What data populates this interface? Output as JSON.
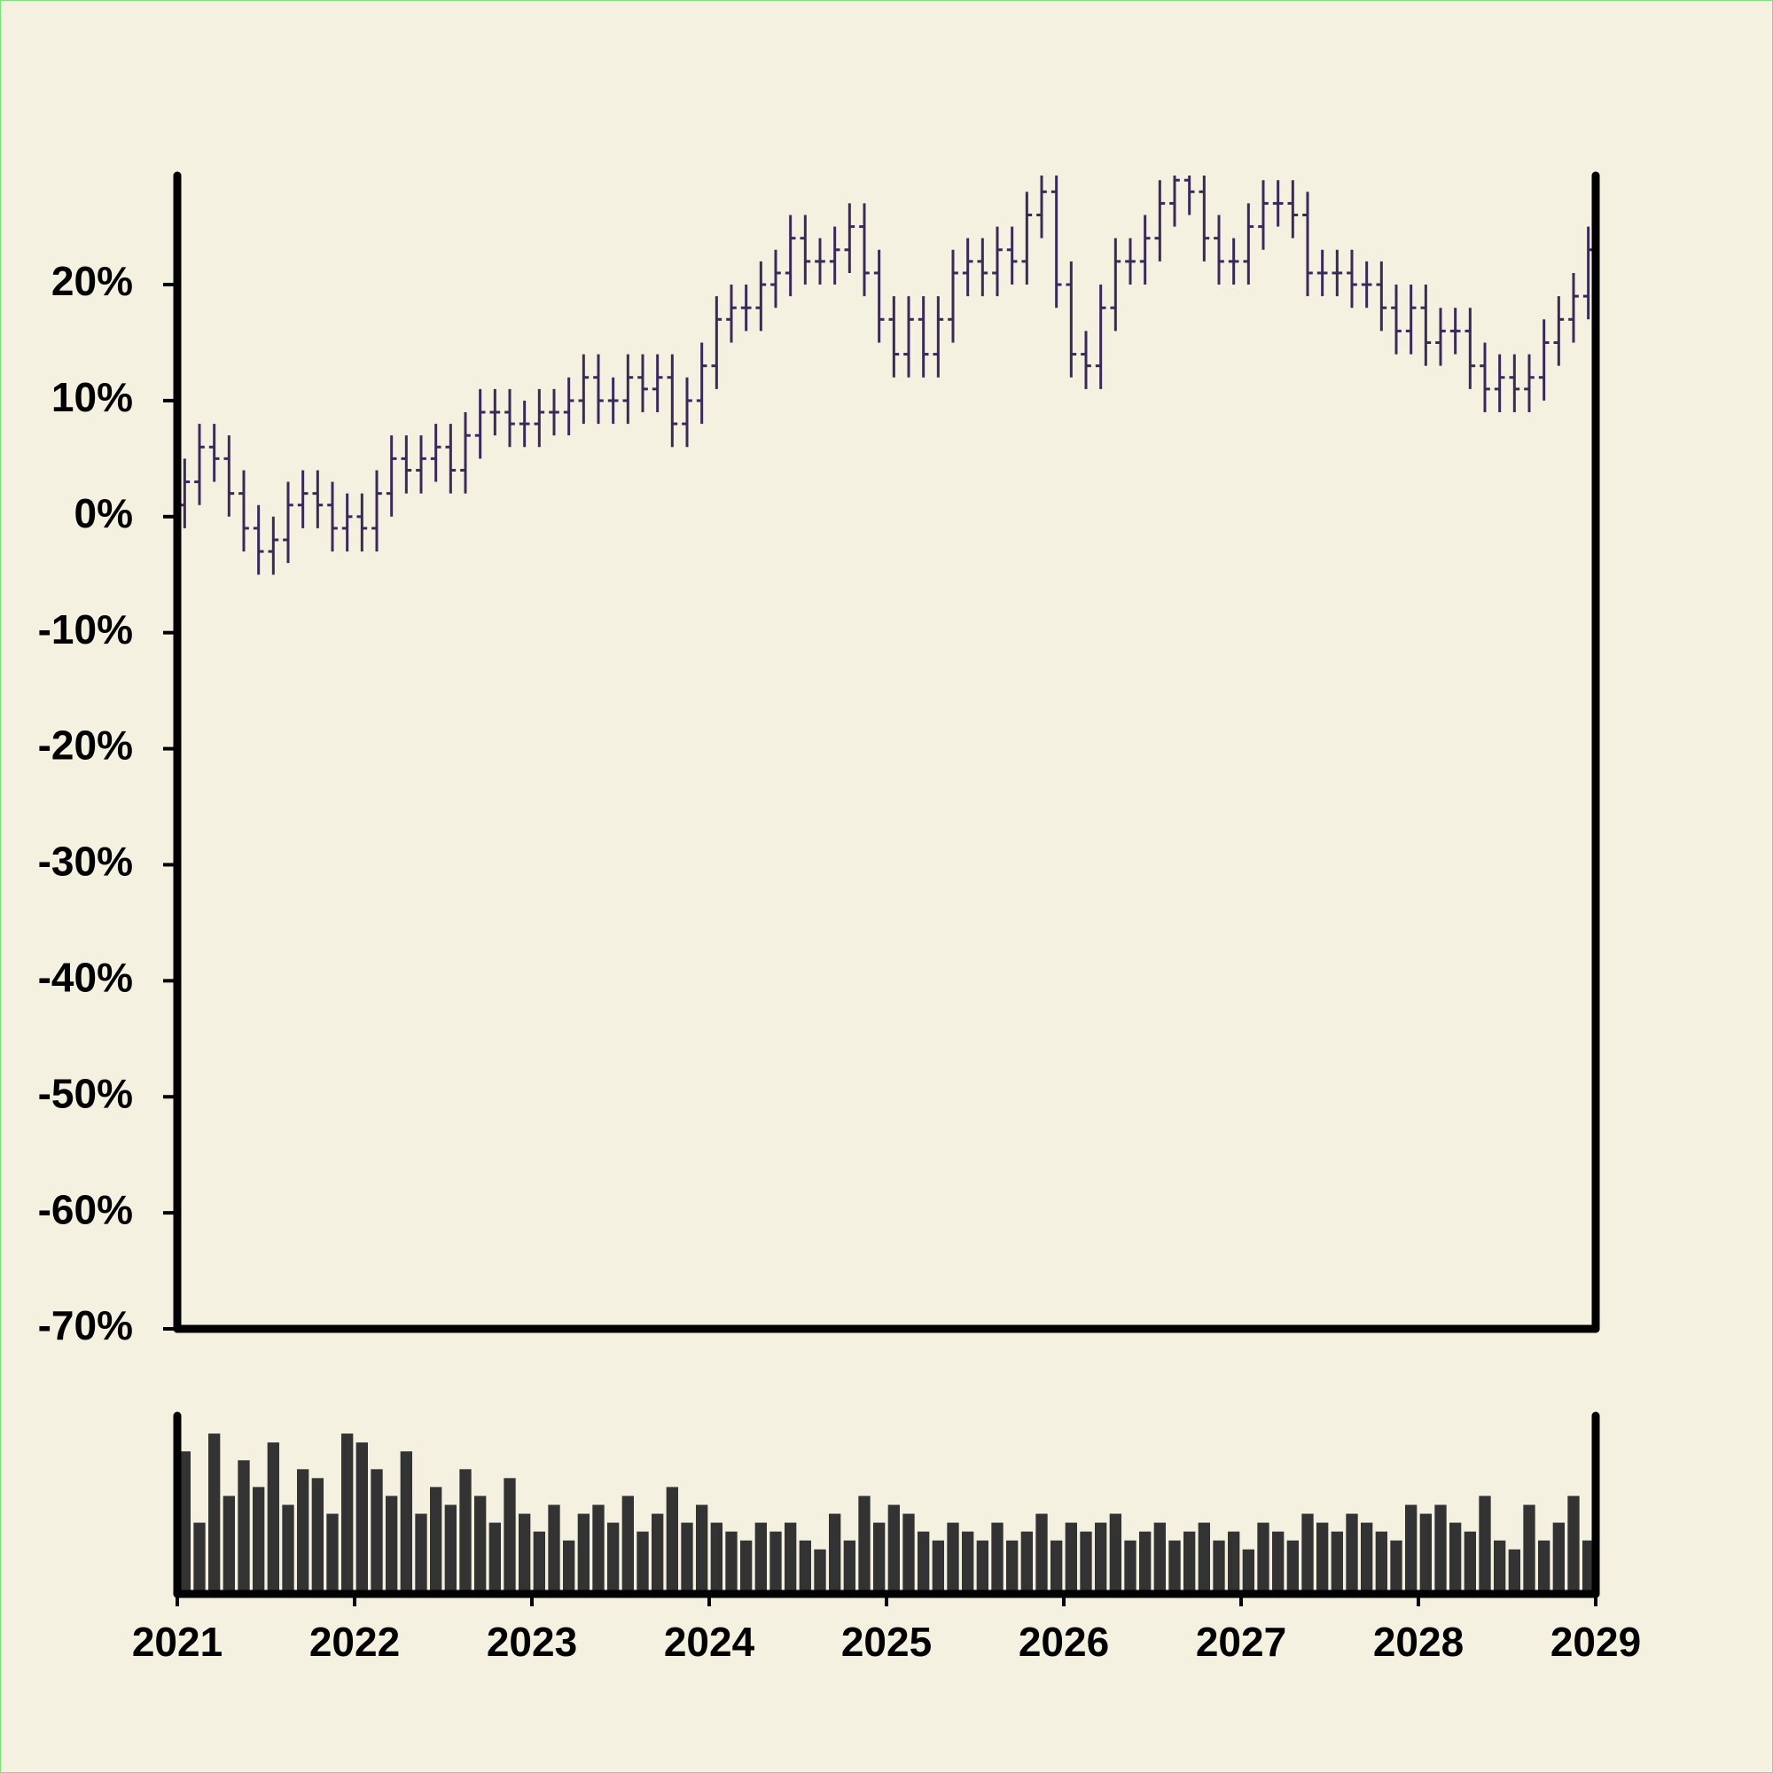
{
  "chart_data": {
    "type": "ohlc",
    "x": [
      "2021-01",
      "2021-02",
      "2021-03",
      "2021-04",
      "2021-05",
      "2021-06",
      "2021-07",
      "2021-08",
      "2021-09",
      "2021-10",
      "2021-11",
      "2021-12",
      "2022-01",
      "2022-02",
      "2022-03",
      "2022-04",
      "2022-05",
      "2022-06",
      "2022-07",
      "2022-08",
      "2022-09",
      "2022-10",
      "2022-11",
      "2022-12",
      "2023-01",
      "2023-02",
      "2023-03",
      "2023-04",
      "2023-05",
      "2023-06",
      "2023-07",
      "2023-08",
      "2023-09",
      "2023-10",
      "2023-11",
      "2023-12",
      "2024-01",
      "2024-02",
      "2024-03",
      "2024-04",
      "2024-05",
      "2024-06",
      "2024-07",
      "2024-08",
      "2024-09",
      "2024-10",
      "2024-11",
      "2024-12",
      "2025-01",
      "2025-02",
      "2025-03",
      "2025-04",
      "2025-05",
      "2025-06",
      "2025-07",
      "2025-08",
      "2025-09",
      "2025-10",
      "2025-11",
      "2025-12",
      "2026-01",
      "2026-02",
      "2026-03",
      "2026-04",
      "2026-05",
      "2026-06",
      "2026-07",
      "2026-08",
      "2026-09",
      "2026-10",
      "2026-11",
      "2026-12",
      "2027-01",
      "2027-02",
      "2027-03",
      "2027-04",
      "2027-05",
      "2027-06",
      "2027-07",
      "2027-08",
      "2027-09",
      "2027-10",
      "2027-11",
      "2027-12",
      "2028-01",
      "2028-02",
      "2028-03",
      "2028-04",
      "2028-05",
      "2028-06",
      "2028-07",
      "2028-08",
      "2028-09",
      "2028-10",
      "2028-11",
      "2028-12"
    ],
    "open": [
      1,
      3,
      6,
      5,
      2,
      -1,
      -3,
      -2,
      1,
      2,
      1,
      -1,
      0,
      -1,
      2,
      5,
      4,
      5,
      6,
      4,
      7,
      9,
      9,
      8,
      8,
      9,
      9,
      10,
      12,
      10,
      10,
      12,
      11,
      12,
      8,
      10,
      13,
      17,
      18,
      18,
      20,
      21,
      24,
      22,
      22,
      23,
      25,
      21,
      17,
      14,
      17,
      14,
      17,
      21,
      22,
      21,
      23,
      22,
      26,
      28,
      20,
      14,
      13,
      18,
      22,
      22,
      24,
      27,
      29,
      28,
      24,
      22,
      22,
      25,
      27,
      27,
      26,
      21,
      21,
      21,
      20,
      20,
      18,
      16,
      18,
      15,
      16,
      16,
      13,
      11,
      12,
      11,
      12,
      15,
      17,
      19
    ],
    "high": [
      5,
      8,
      8,
      7,
      4,
      1,
      0,
      3,
      4,
      4,
      3,
      2,
      2,
      4,
      7,
      7,
      7,
      8,
      8,
      9,
      11,
      11,
      11,
      10,
      11,
      11,
      12,
      14,
      14,
      12,
      14,
      14,
      14,
      14,
      12,
      15,
      19,
      20,
      20,
      22,
      23,
      26,
      26,
      24,
      25,
      27,
      27,
      23,
      19,
      19,
      19,
      19,
      23,
      24,
      24,
      25,
      25,
      28,
      30,
      30,
      22,
      16,
      20,
      24,
      24,
      26,
      29,
      31,
      31,
      30,
      26,
      24,
      27,
      29,
      29,
      29,
      28,
      23,
      23,
      23,
      22,
      22,
      20,
      20,
      20,
      18,
      18,
      18,
      15,
      14,
      14,
      14,
      17,
      19,
      21,
      25
    ],
    "low": [
      -1,
      1,
      3,
      0,
      -3,
      -5,
      -5,
      -4,
      -1,
      -1,
      -3,
      -3,
      -3,
      -3,
      0,
      2,
      2,
      3,
      2,
      2,
      5,
      7,
      6,
      6,
      6,
      7,
      7,
      8,
      8,
      8,
      8,
      9,
      9,
      6,
      6,
      8,
      11,
      15,
      16,
      16,
      18,
      19,
      20,
      20,
      20,
      21,
      19,
      15,
      12,
      12,
      12,
      12,
      15,
      19,
      19,
      19,
      20,
      20,
      24,
      18,
      12,
      11,
      11,
      16,
      20,
      20,
      22,
      25,
      26,
      22,
      20,
      20,
      20,
      23,
      25,
      24,
      19,
      19,
      19,
      18,
      18,
      16,
      14,
      14,
      13,
      13,
      14,
      11,
      9,
      9,
      9,
      9,
      10,
      13,
      15,
      17
    ],
    "close": [
      3,
      6,
      5,
      2,
      -1,
      -3,
      -2,
      1,
      2,
      1,
      -1,
      0,
      -1,
      2,
      5,
      4,
      5,
      6,
      4,
      7,
      9,
      9,
      8,
      8,
      9,
      9,
      10,
      12,
      10,
      10,
      12,
      11,
      12,
      8,
      10,
      13,
      17,
      18,
      18,
      20,
      21,
      24,
      22,
      22,
      23,
      25,
      21,
      17,
      14,
      17,
      14,
      17,
      21,
      22,
      21,
      23,
      22,
      26,
      28,
      20,
      14,
      13,
      18,
      22,
      22,
      24,
      27,
      29,
      28,
      24,
      22,
      22,
      25,
      27,
      27,
      26,
      21,
      21,
      21,
      20,
      20,
      18,
      16,
      18,
      15,
      16,
      16,
      13,
      11,
      12,
      11,
      12,
      15,
      17,
      19,
      23
    ],
    "color": "#3a2a5a",
    "ylim": [
      -70,
      29.4
    ],
    "yticks": [
      {
        "value": -70,
        "label": "-70%"
      },
      {
        "value": -60,
        "label": "-60%"
      },
      {
        "value": -50,
        "label": "-50%"
      },
      {
        "value": -40,
        "label": "-40%"
      },
      {
        "value": -30,
        "label": "-30%"
      },
      {
        "value": -20,
        "label": "-20%"
      },
      {
        "value": -10,
        "label": "-10%"
      },
      {
        "value": 0,
        "label": "0%"
      },
      {
        "value": 10,
        "label": "10%"
      },
      {
        "value": 20,
        "label": "20%"
      }
    ],
    "xlim": [
      2021,
      2029
    ],
    "xticks": [
      2021,
      2022,
      2023,
      2024,
      2025,
      2026,
      2027,
      2028,
      2029
    ],
    "volume": {
      "color": "#333333",
      "ylim": [
        0,
        100
      ],
      "values": [
        80,
        40,
        90,
        55,
        75,
        60,
        85,
        50,
        70,
        65,
        45,
        90,
        85,
        70,
        55,
        80,
        45,
        60,
        50,
        70,
        55,
        40,
        65,
        45,
        35,
        50,
        30,
        45,
        50,
        40,
        55,
        35,
        45,
        60,
        40,
        50,
        40,
        35,
        30,
        40,
        35,
        40,
        30,
        25,
        45,
        30,
        55,
        40,
        50,
        45,
        35,
        30,
        40,
        35,
        30,
        40,
        30,
        35,
        45,
        30,
        40,
        35,
        40,
        45,
        30,
        35,
        40,
        30,
        35,
        40,
        30,
        35,
        25,
        40,
        35,
        30,
        45,
        40,
        35,
        45,
        40,
        35,
        30,
        50,
        45,
        50,
        40,
        35,
        55,
        30,
        25,
        50,
        30,
        40,
        55,
        30
      ]
    }
  }
}
